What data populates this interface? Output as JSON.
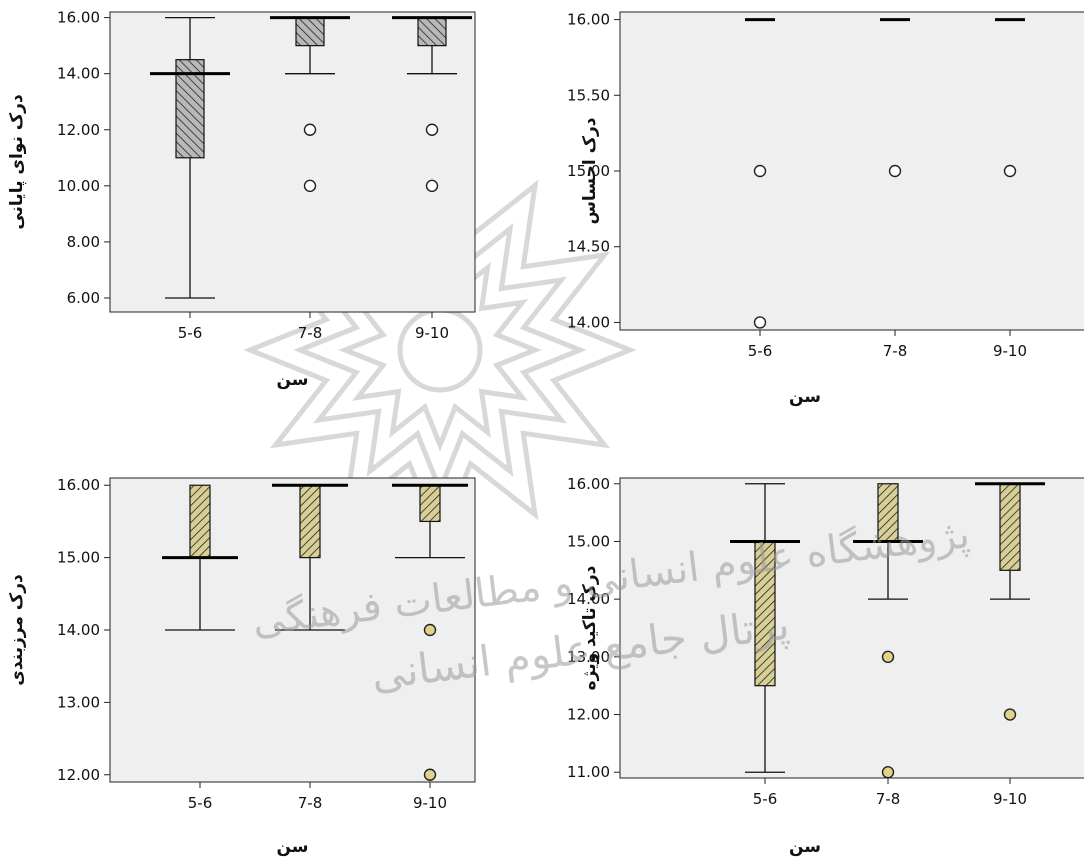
{
  "colors": {
    "panel_bg": "#efefef",
    "hatch_fill": "#d8cf96",
    "hatch_fill_gray": "#b8b8b8",
    "outlier_fill": "#e2d38a"
  },
  "watermark": {
    "line1": "پژوهشگاه علوم انسانی و مطالعات فرهنگی",
    "line2": "پرتال جامع علوم انسانی"
  },
  "chart_data": [
    {
      "type": "box",
      "id": "tl",
      "ylabel": "درک نوای پایانی",
      "xlabel": "سن",
      "categories": [
        "5-6",
        "7-8",
        "9-10"
      ],
      "yticks": [
        "6.00",
        "8.00",
        "10.00",
        "12.00",
        "14.00",
        "16.00"
      ],
      "ylim": [
        5.5,
        16.2
      ],
      "hatch": "gray",
      "boxes": [
        {
          "min": 6,
          "q1": 11,
          "median": 14,
          "q3": 14.5,
          "max": 16,
          "outliers": []
        },
        {
          "min": 14,
          "q1": 15,
          "median": 16,
          "q3": 16,
          "max": 16,
          "outliers": [
            12,
            10
          ]
        },
        {
          "min": 14,
          "q1": 15,
          "median": 16,
          "q3": 16,
          "max": 16,
          "outliers": [
            12,
            10
          ]
        }
      ]
    },
    {
      "type": "box",
      "id": "tr",
      "ylabel": "درک احساس",
      "xlabel": "سن",
      "categories": [
        "5-6",
        "7-8",
        "9-10"
      ],
      "yticks": [
        "14.00",
        "14.50",
        "15.00",
        "15.50",
        "16.00"
      ],
      "ylim": [
        13.95,
        16.05
      ],
      "hatch": "none",
      "boxes": [
        {
          "min": 16,
          "q1": 16,
          "median": 16,
          "q3": 16,
          "max": 16,
          "outliers": [
            15,
            14
          ]
        },
        {
          "min": 16,
          "q1": 16,
          "median": 16,
          "q3": 16,
          "max": 16,
          "outliers": [
            15
          ]
        },
        {
          "min": 16,
          "q1": 16,
          "median": 16,
          "q3": 16,
          "max": 16,
          "outliers": [
            15
          ]
        }
      ]
    },
    {
      "type": "box",
      "id": "bl",
      "ylabel": "درک مرزبندی",
      "xlabel": "سن",
      "categories": [
        "5-6",
        "7-8",
        "9-10"
      ],
      "yticks": [
        "12.00",
        "13.00",
        "14.00",
        "15.00",
        "16.00"
      ],
      "ylim": [
        11.9,
        16.1
      ],
      "hatch": "yellow",
      "boxes": [
        {
          "min": 14,
          "q1": 15,
          "median": 15,
          "q3": 16,
          "max": 16,
          "outliers": []
        },
        {
          "min": 14,
          "q1": 15,
          "median": 16,
          "q3": 16,
          "max": 16,
          "outliers": []
        },
        {
          "min": 15,
          "q1": 15.5,
          "median": 16,
          "q3": 16,
          "max": 16,
          "outliers": [
            14,
            12
          ]
        }
      ]
    },
    {
      "type": "box",
      "id": "br",
      "ylabel": "درک تاکید ویژه",
      "xlabel": "سن",
      "categories": [
        "5-6",
        "7-8",
        "9-10"
      ],
      "yticks": [
        "11.00",
        "12.00",
        "13.00",
        "14.00",
        "15.00",
        "16.00"
      ],
      "ylim": [
        10.9,
        16.1
      ],
      "hatch": "yellow",
      "boxes": [
        {
          "min": 11,
          "q1": 12.5,
          "median": 15,
          "q3": 15,
          "max": 16,
          "outliers": []
        },
        {
          "min": 14,
          "q1": 15,
          "median": 15,
          "q3": 16,
          "max": 16,
          "outliers": [
            13,
            11
          ]
        },
        {
          "min": 14,
          "q1": 14.5,
          "median": 16,
          "q3": 16,
          "max": 16,
          "outliers": [
            12
          ]
        }
      ]
    }
  ]
}
